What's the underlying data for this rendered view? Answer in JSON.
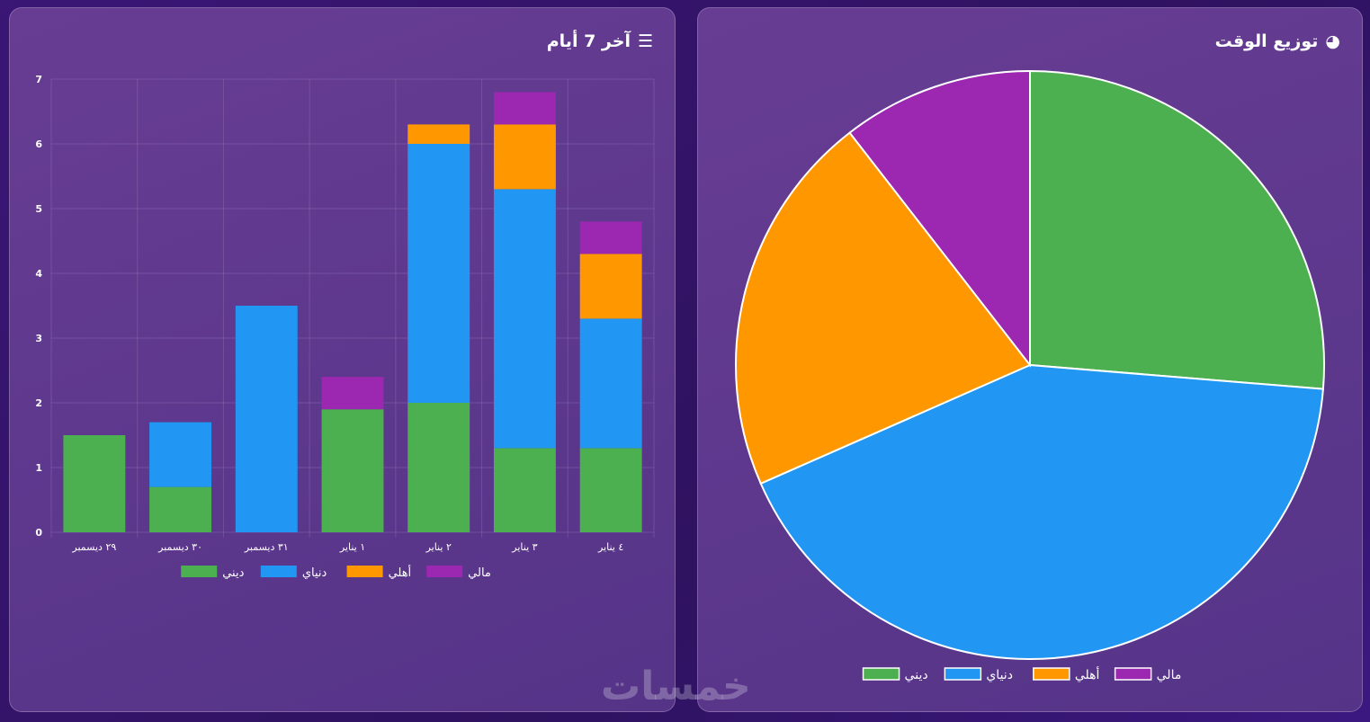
{
  "bar_panel": {
    "title": "آخر 7 أيام",
    "icon": "bar-chart-icon"
  },
  "pie_panel": {
    "title": "توزيع الوقت",
    "icon": "pie-chart-icon"
  },
  "watermark": "خمسات",
  "chart_data": [
    {
      "type": "bar",
      "stacked": true,
      "categories": [
        "٢٩ ديسمبر",
        "٣٠ ديسمبر",
        "٣١ ديسمبر",
        "١ يناير",
        "٢ يناير",
        "٣ يناير",
        "٤ يناير"
      ],
      "series": [
        {
          "name": "ديني",
          "color": "#4caf50",
          "values": [
            1.5,
            0.7,
            0,
            1.9,
            2,
            1.3,
            1.3
          ]
        },
        {
          "name": "دنياي",
          "color": "#2196f3",
          "values": [
            0,
            1,
            3.5,
            0,
            4,
            4,
            2
          ]
        },
        {
          "name": "أهلي",
          "color": "#ff9800",
          "values": [
            0,
            0,
            0,
            0,
            0.3,
            1,
            1
          ]
        },
        {
          "name": "مالي",
          "color": "#9c27b0",
          "values": [
            0,
            0,
            0,
            0.5,
            0,
            0.5,
            0.5
          ]
        }
      ],
      "ylim": [
        0,
        7
      ],
      "yticks": [
        0,
        1,
        2,
        3,
        4,
        5,
        6,
        7
      ],
      "grid": true,
      "legend": "bottom"
    },
    {
      "type": "pie",
      "labels": [
        "ديني",
        "دنياي",
        "أهلي",
        "مالي"
      ],
      "values": [
        26.3,
        42.1,
        21.1,
        10.5
      ],
      "colors": [
        "#4caf50",
        "#2196f3",
        "#ff9800",
        "#9c27b0"
      ],
      "legend": "bottom"
    }
  ]
}
